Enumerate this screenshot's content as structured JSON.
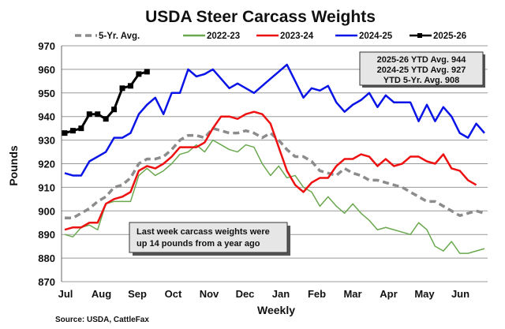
{
  "chart_data": {
    "type": "line",
    "title": "USDA Steer Carcass Weights",
    "xlabel": "Weekly",
    "ylabel": "Pounds",
    "ylim": [
      870,
      970
    ],
    "yticks": [
      870,
      880,
      890,
      900,
      910,
      920,
      930,
      940,
      950,
      960,
      970
    ],
    "xtick_labels": [
      "Jul",
      "Aug",
      "Sep",
      "Oct",
      "Nov",
      "Dec",
      "Jan",
      "Feb",
      "Mar",
      "Apr",
      "May",
      "Jun"
    ],
    "grid": "horizontal",
    "legend_position": "top",
    "series": [
      {
        "name": "5-Yr. Avg.",
        "color": "#8c8c8c",
        "style": "dashed",
        "values": [
          897,
          897,
          899,
          901,
          904,
          906,
          910,
          911,
          914,
          920,
          922,
          922,
          923,
          926,
          930,
          932,
          932,
          931,
          935,
          934,
          933,
          933,
          934,
          933,
          931,
          933,
          930,
          926,
          923,
          923,
          921,
          917,
          916,
          915,
          918,
          916,
          915,
          913,
          913,
          912,
          911,
          910,
          908,
          906,
          904,
          904,
          902,
          900,
          898,
          899,
          900,
          899
        ]
      },
      {
        "name": "2022-23",
        "color": "#6aa84f",
        "style": "solid",
        "values": [
          890,
          889,
          893,
          894,
          892,
          903,
          904,
          904,
          904,
          915,
          918,
          915,
          917,
          920,
          924,
          925,
          928,
          925,
          930,
          928,
          926,
          925,
          928,
          927,
          920,
          915,
          919,
          914,
          915,
          910,
          908,
          902,
          906,
          902,
          899,
          903,
          899,
          896,
          892,
          893,
          892,
          891,
          890,
          895,
          892,
          885,
          883,
          887,
          882,
          882,
          883,
          884
        ]
      },
      {
        "name": "2023-24",
        "color": "#ee1111",
        "style": "solid",
        "values": [
          892,
          893,
          893,
          895,
          895,
          903,
          905,
          906,
          908,
          917,
          919,
          918,
          920,
          923,
          927,
          927,
          927,
          929,
          935,
          940,
          940,
          939,
          941,
          942,
          941,
          937,
          927,
          917,
          911,
          908,
          912,
          914,
          914,
          919,
          922,
          922,
          924,
          923,
          919,
          922,
          919,
          920,
          923,
          923,
          921,
          920,
          924,
          918,
          917,
          913,
          911
        ]
      },
      {
        "name": "2024-25",
        "color": "#0a14e6",
        "style": "solid",
        "values": [
          916,
          915,
          915,
          921,
          923,
          925,
          931,
          931,
          933,
          941,
          945,
          948,
          941,
          950,
          950,
          960,
          957,
          958,
          960,
          956,
          952,
          954,
          952,
          950,
          953,
          956,
          959,
          962,
          955,
          948,
          952,
          951,
          953,
          946,
          942,
          945,
          947,
          950,
          944,
          949,
          946,
          946,
          946,
          938,
          945,
          938,
          944,
          940,
          933,
          931,
          937,
          933
        ]
      },
      {
        "name": "2025-26",
        "color": "#000000",
        "style": "markers",
        "values": [
          933,
          934,
          935,
          941,
          941,
          939,
          943,
          952,
          953,
          958,
          959
        ]
      }
    ],
    "stats_box": [
      "2025-26 YTD Avg. 944",
      "2024-25 YTD Avg. 927",
      "YTD 5-Yr. Avg. 908"
    ],
    "annotation": [
      "Last week carcass weights were",
      "up 14 pounds from a year ago"
    ],
    "source": "Source: USDA,  CattleFax"
  }
}
